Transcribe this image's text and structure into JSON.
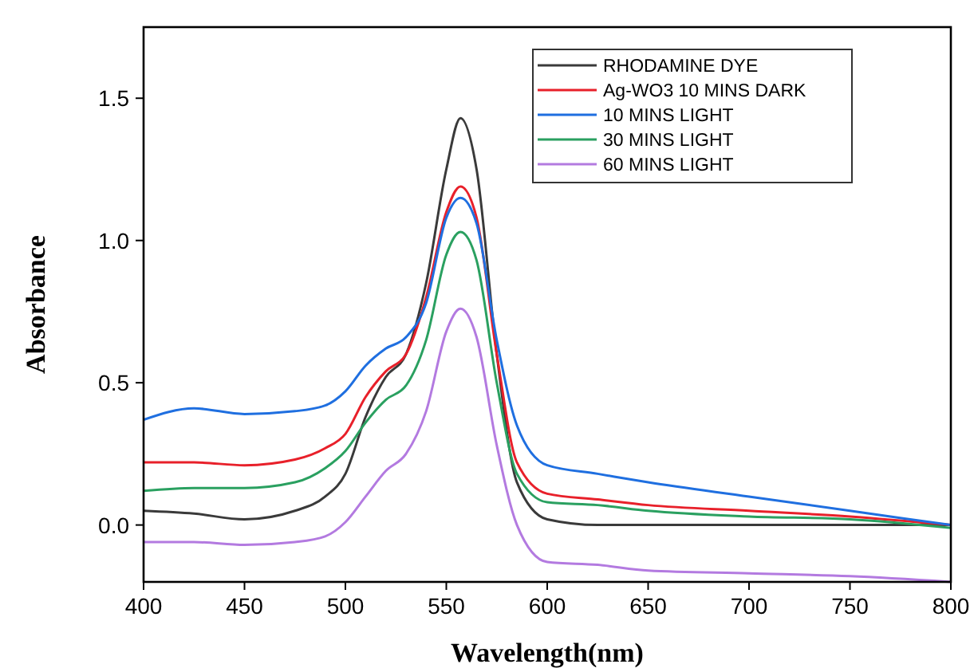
{
  "chart_data": {
    "type": "line",
    "xlabel": "Wavelength(nm)",
    "ylabel": "Absorbance",
    "x": [
      400,
      425,
      450,
      475,
      490,
      500,
      510,
      520,
      530,
      540,
      550,
      557,
      565,
      575,
      585,
      600,
      625,
      650,
      700,
      750,
      800
    ],
    "xlim": [
      400,
      800
    ],
    "xticks": [
      400,
      450,
      500,
      550,
      600,
      650,
      700,
      750,
      800
    ],
    "ylim": [
      -0.2,
      1.75
    ],
    "yticks": [
      {
        "value": 0,
        "label": "0.0"
      },
      {
        "value": 0.5,
        "label": "0.5"
      },
      {
        "value": 1,
        "label": "1.0"
      },
      {
        "value": 1.5,
        "label": "1.5"
      }
    ],
    "grid": false,
    "legend": "top right",
    "marker": "none",
    "line_style": "solid",
    "series": [
      {
        "name": "RHODAMINE DYE",
        "color": "#3a3a3a",
        "values": [
          0.05,
          0.04,
          0.02,
          0.05,
          0.1,
          0.18,
          0.38,
          0.52,
          0.6,
          0.85,
          1.25,
          1.43,
          1.25,
          0.6,
          0.15,
          0.02,
          0,
          0,
          0,
          0,
          0
        ]
      },
      {
        "name": "Ag-WO3 10 MINS DARK",
        "color": "#e8202a",
        "values": [
          0.22,
          0.22,
          0.21,
          0.23,
          0.27,
          0.32,
          0.45,
          0.54,
          0.6,
          0.8,
          1.1,
          1.19,
          1.08,
          0.6,
          0.22,
          0.11,
          0.09,
          0.07,
          0.05,
          0.03,
          0
        ]
      },
      {
        "name": "10 MINS LIGHT",
        "color": "#1f6fe0",
        "values": [
          0.37,
          0.41,
          0.39,
          0.4,
          0.42,
          0.47,
          0.56,
          0.62,
          0.66,
          0.78,
          1.08,
          1.15,
          1.06,
          0.65,
          0.35,
          0.21,
          0.18,
          0.15,
          0.1,
          0.05,
          0
        ]
      },
      {
        "name": "30 MINS LIGHT",
        "color": "#2aa060",
        "values": [
          0.12,
          0.13,
          0.13,
          0.15,
          0.2,
          0.26,
          0.36,
          0.44,
          0.49,
          0.65,
          0.95,
          1.03,
          0.93,
          0.5,
          0.18,
          0.08,
          0.07,
          0.05,
          0.03,
          0.02,
          -0.01
        ]
      },
      {
        "name": "60 MINS LIGHT",
        "color": "#b37ae0",
        "values": [
          -0.06,
          -0.06,
          -0.07,
          -0.06,
          -0.04,
          0.01,
          0.1,
          0.19,
          0.25,
          0.4,
          0.68,
          0.76,
          0.66,
          0.28,
          0,
          -0.13,
          -0.14,
          -0.16,
          -0.17,
          -0.18,
          -0.2
        ]
      }
    ]
  }
}
